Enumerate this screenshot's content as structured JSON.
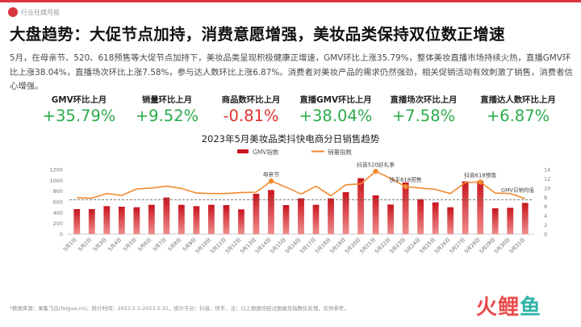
{
  "brand": {
    "text": "行业社媒月报",
    "accent": "#d9363e"
  },
  "title": "大盘趋势：大促节点加持，消费意愿增强，美妆品类保持双位数正增速",
  "paragraph": "5月，在母亲节、520、618预售等大促节点加持下，美妆品类呈现积极健康正增速，GMV环比上涨35.79%，整体美妆直播市场持续火热，直播GMV环比上涨38.04%，直播场次环比上涨7.58%，参与达人数环比上涨6.87%。消费者对美妆产品的需求仍然强劲，相关促销活动有效刺激了销售，消费者信心增强。",
  "kpis": [
    {
      "label": "GMV环比上月",
      "value": "+35.79%",
      "color": "#2bab4a"
    },
    {
      "label": "销量环比上月",
      "value": "+9.52%",
      "color": "#2bab4a"
    },
    {
      "label": "商品数环比上月",
      "value": "-0.81%",
      "color": "#e0312b"
    },
    {
      "label": "直播GMV环比上月",
      "value": "+38.04%",
      "color": "#2bab4a"
    },
    {
      "label": "直播场次环比上月",
      "value": "+7.58%",
      "color": "#2bab4a"
    },
    {
      "label": "直播达人数环比上月",
      "value": "+6.87%",
      "color": "#2bab4a"
    }
  ],
  "chart_data": {
    "type": "bar",
    "title": "2023年5月美妆品类抖快电商分日销售趋势",
    "categories": [
      "5月1日",
      "5月2日",
      "5月3日",
      "5月4日",
      "5月5日",
      "5月6日",
      "5月7日",
      "5月8日",
      "5月9日",
      "5月10日",
      "5月11日",
      "5月12日",
      "5月13日",
      "5月14日",
      "5月15日",
      "5月16日",
      "5月17日",
      "5月18日",
      "5月19日",
      "5月20日",
      "5月21日",
      "5月22日",
      "5月23日",
      "5月24日",
      "5月25日",
      "5月26日",
      "5月27日",
      "5月28日",
      "5月29日",
      "5月30日",
      "5月31日"
    ],
    "series": [
      {
        "name": "GMV指数",
        "kind": "bar",
        "axis": "left",
        "color": "#c8161e",
        "values": [
          465,
          465,
          520,
          510,
          500,
          545,
          680,
          545,
          520,
          545,
          540,
          460,
          750,
          820,
          540,
          665,
          545,
          665,
          780,
          1040,
          720,
          550,
          960,
          650,
          590,
          500,
          980,
          990,
          480,
          490,
          580
        ]
      },
      {
        "name": "销量指数",
        "kind": "line",
        "axis": "right",
        "color": "#f28a30",
        "values": [
          7.9,
          7.8,
          8.8,
          8.4,
          9.8,
          10.0,
          10.4,
          9.9,
          8.9,
          8.8,
          8.8,
          9.0,
          9.1,
          11.5,
          10.2,
          8.7,
          10.4,
          8.3,
          10.7,
          10.9,
          13.6,
          12.1,
          10.3,
          10.0,
          9.7,
          8.8,
          11.2,
          11.3,
          8.9,
          8.8,
          7.7
        ]
      }
    ],
    "reference_line": {
      "label": "GMV日销均值",
      "value": 640
    },
    "annotations": [
      {
        "text": "母亲节",
        "index": 13
      },
      {
        "text": "抖音520好礼季",
        "index": 20
      },
      {
        "text": "快手618预售",
        "index": 22
      },
      {
        "text": "抖音618预售",
        "index": 27
      }
    ],
    "ylim_left": [
      0,
      1200
    ],
    "yticks_left": [
      0,
      200,
      400,
      600,
      800,
      1000,
      1200
    ],
    "ylim_right": [
      0,
      14
    ],
    "yticks_right": [
      0,
      2,
      4,
      6,
      8,
      10,
      12,
      14
    ],
    "legend_position": "top-center",
    "grid": false
  },
  "footnote": "*数据来源：果集飞瓜(feigua.cn)，统计时间：2023.5.1-2023.5.31，统计平台：抖音、快手，注：以上数据均经过脱敏及指数化处理，仅供参考。",
  "logo": {
    "part1": "火",
    "part2": "鲤",
    "part3": "鱼"
  }
}
